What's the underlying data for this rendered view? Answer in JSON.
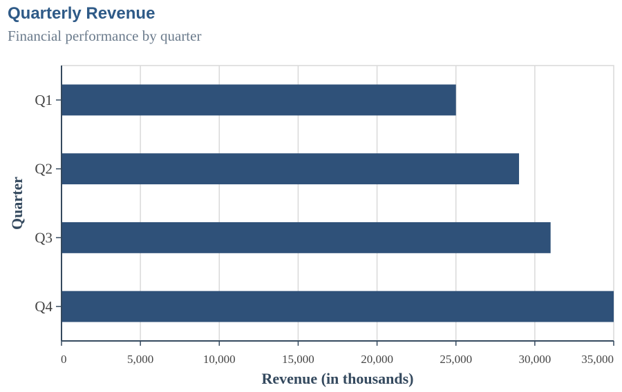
{
  "chart_data": {
    "type": "bar",
    "orientation": "horizontal",
    "title": "Quarterly Revenue",
    "subtitle": "Financial performance by quarter",
    "xlabel": "Revenue (in thousands)",
    "ylabel": "Quarter",
    "categories": [
      "Q1",
      "Q2",
      "Q3",
      "Q4"
    ],
    "values": [
      25000,
      29000,
      31000,
      35000
    ],
    "xlim": [
      0,
      35000
    ],
    "xticks": [
      0,
      5000,
      10000,
      15000,
      20000,
      25000,
      30000,
      35000
    ],
    "xtick_labels": [
      "0",
      "5,000",
      "10,000",
      "15,000",
      "20,000",
      "25,000",
      "30,000",
      "35,000"
    ],
    "grid": "vertical",
    "legend": "none",
    "colors": {
      "bar": "#2f5179",
      "title": "#2e5a87",
      "subtitle": "#6b7b8c",
      "axis": "#34495e",
      "grid": "#d9d9d9"
    }
  }
}
